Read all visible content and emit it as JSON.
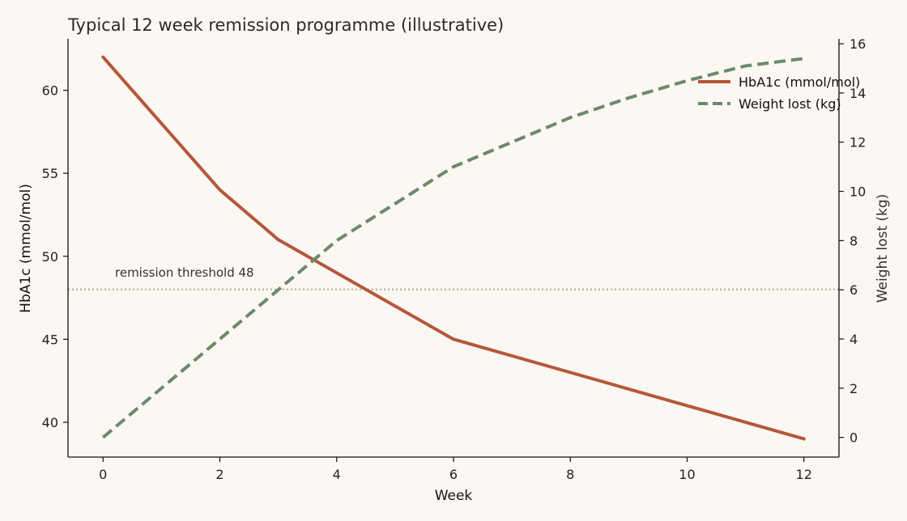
{
  "chart_data": {
    "type": "line",
    "title": "Typical 12 week remission programme (illustrative)",
    "xlabel": "Week",
    "ylabel_left": "HbA1c (mmol/mol)",
    "ylabel_right": "Weight lost (kg)",
    "x_ticks": [
      0,
      2,
      4,
      6,
      8,
      10,
      12
    ],
    "y_left_ticks": [
      40,
      45,
      50,
      55,
      60
    ],
    "y_right_ticks": [
      0,
      2,
      4,
      6,
      8,
      10,
      12,
      14,
      16
    ],
    "xlim": [
      -0.6,
      12.6
    ],
    "ylim_left": [
      37.9,
      63.1
    ],
    "ylim_right": [
      -0.8,
      16.2
    ],
    "legend_position": "top-right",
    "grid": false,
    "series": [
      {
        "name": "HbA1c (mmol/mol)",
        "axis": "left",
        "color": "#b5573b",
        "style": "solid",
        "x": [
          0,
          2,
          3,
          6,
          8,
          10,
          12
        ],
        "values": [
          62,
          54,
          51,
          45,
          43,
          41,
          39
        ]
      },
      {
        "name": "Weight lost (kg)",
        "axis": "right",
        "color": "#6b8a6b",
        "style": "dashed",
        "x": [
          0,
          2,
          3,
          4,
          6,
          8,
          9,
          10,
          11,
          12
        ],
        "values": [
          0,
          4,
          6,
          8,
          11,
          13,
          13.8,
          14.5,
          15.1,
          15.4
        ]
      }
    ],
    "threshold": {
      "value": 48,
      "axis": "left",
      "label": "remission threshold 48",
      "color": "#b0a9a0"
    }
  }
}
